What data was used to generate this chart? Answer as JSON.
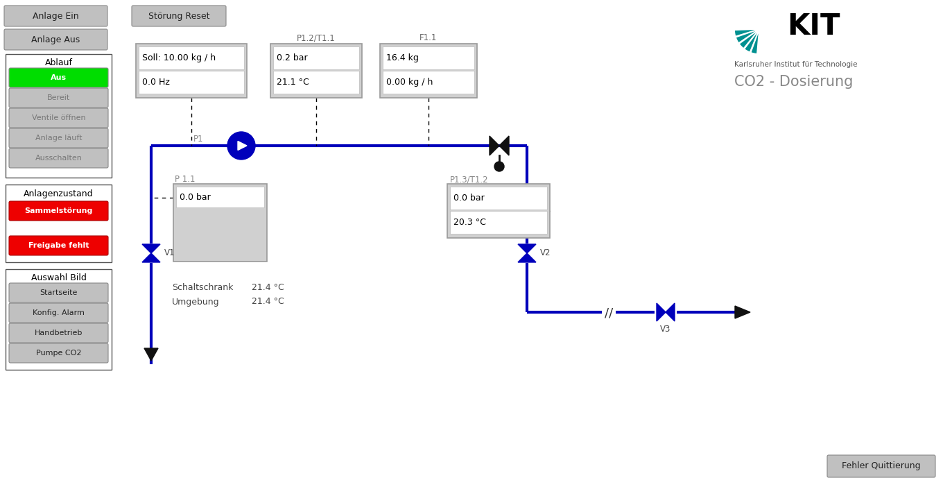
{
  "title": "CO2 - Dosierung",
  "kit_text": "Karlsruher Institut für Technologie",
  "left_buttons": [
    "Anlage Ein",
    "Anlage Aus"
  ],
  "ablauf_label": "Ablauf",
  "ablauf_items": [
    "Aus",
    "Bereit",
    "Ventile öffnen",
    "Anlage läuft",
    "Ausschalten"
  ],
  "ablauf_active": 0,
  "ablauf_active_color": "#00dd00",
  "ablauf_inactive_color": "#c0c0c0",
  "anlagenzustand_label": "Anlagenzustand",
  "status_items": [
    "Sammelstörung",
    "Freigabe fehlt"
  ],
  "status_color": "#ee0000",
  "auswahl_label": "Auswahl Bild",
  "auswahl_items": [
    "Startseite",
    "Konfig. Alarm",
    "Handbetrieb",
    "Pumpe CO2"
  ],
  "stoerung_reset": "Störung Reset",
  "fehler_quittierung": "Fehler Quittierung",
  "p1_label": "P1",
  "p11_label": "P 1.1",
  "p12t11_label": "P1.2/T1.1",
  "p13t12_label": "P1.3/T1.2",
  "f11_label": "F1.1",
  "v1_label": "V1",
  "v2_label": "V2",
  "v3_label": "V3",
  "box1_lines": [
    "Soll: 10.00 kg / h",
    "0.0 Hz"
  ],
  "box2_lines": [
    "0.2 bar",
    "21.1 °C"
  ],
  "box3_lines": [
    "16.4 kg",
    "0.00 kg / h"
  ],
  "box4_lines": [
    "0.0 bar",
    ""
  ],
  "box5_lines": [
    "0.0 bar",
    "20.3 °C"
  ],
  "schaltschrank_label": "Schaltschrank",
  "schaltschrank_val": "21.4 °C",
  "umgebung_label": "Umgebung",
  "umgebung_val": "21.4 °C",
  "blue": "#0000bb",
  "black": "#111111",
  "lw": 3.0
}
